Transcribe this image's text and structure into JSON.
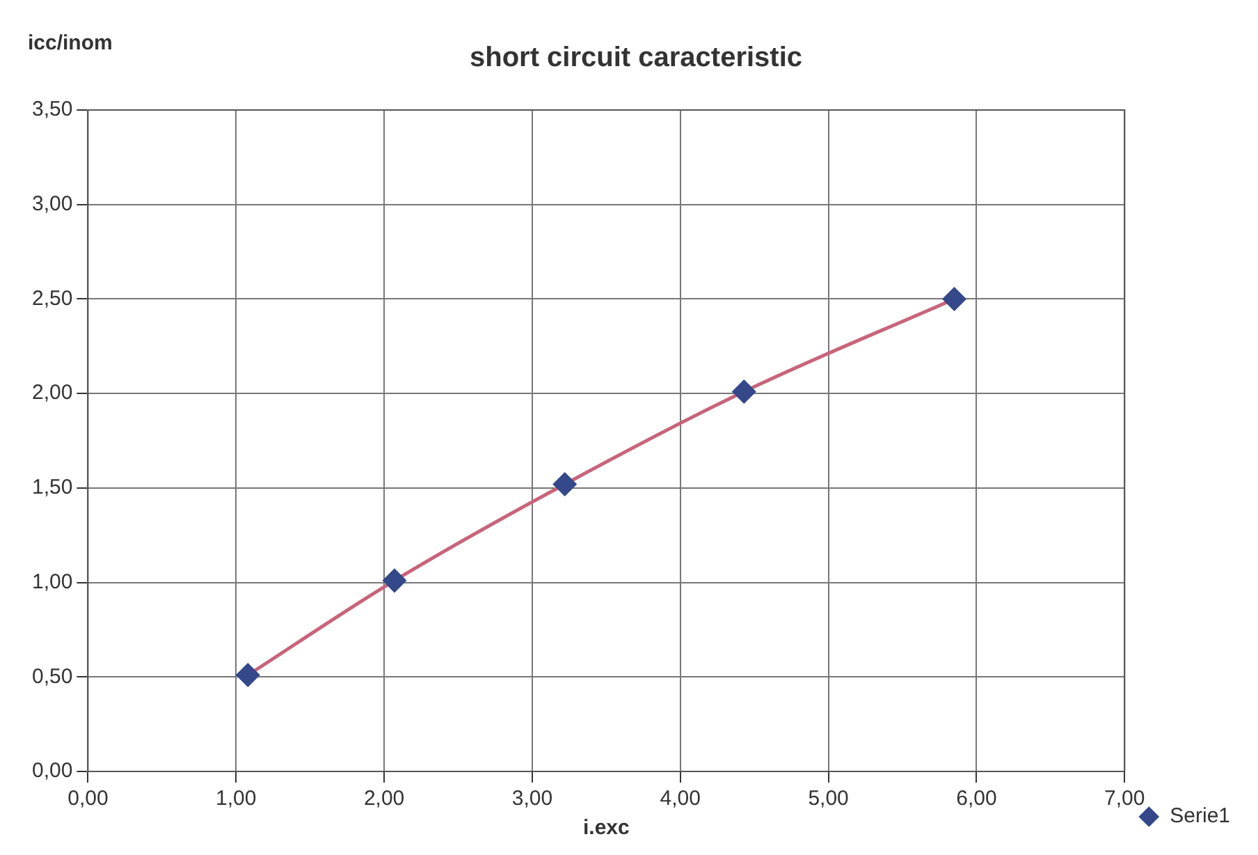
{
  "chart_data": {
    "type": "line",
    "title": "short circuit caracteristic",
    "xlabel": "i.exc",
    "ylabel": "icc/inom",
    "series": [
      {
        "name": "Serie1",
        "color": "#c8647a",
        "x": [
          1.08,
          2.07,
          3.22,
          4.43,
          5.85
        ],
        "values": [
          0.51,
          1.01,
          1.52,
          2.01,
          2.5
        ]
      }
    ],
    "xlim": [
      0,
      7
    ],
    "xticks": [
      {
        "value": 0,
        "label": "0,00"
      },
      {
        "value": 1,
        "label": "1,00"
      },
      {
        "value": 2,
        "label": "2,00"
      },
      {
        "value": 3,
        "label": "3,00"
      },
      {
        "value": 4,
        "label": "4,00"
      },
      {
        "value": 5,
        "label": "5,00"
      },
      {
        "value": 6,
        "label": "6,00"
      },
      {
        "value": 7,
        "label": "7,00"
      }
    ],
    "ylim": [
      0,
      3.5
    ],
    "yticks": [
      {
        "value": 0,
        "label": "0,00"
      },
      {
        "value": 0.5,
        "label": "0,50"
      },
      {
        "value": 1,
        "label": "1,00"
      },
      {
        "value": 1.5,
        "label": "1,50"
      },
      {
        "value": 2,
        "label": "2,00"
      },
      {
        "value": 2.5,
        "label": "2,50"
      },
      {
        "value": 3,
        "label": "3,00"
      },
      {
        "value": 3.5,
        "label": "3,50"
      }
    ],
    "grid": true,
    "legend": "right",
    "marker": "diamond",
    "line_style": "solid"
  }
}
